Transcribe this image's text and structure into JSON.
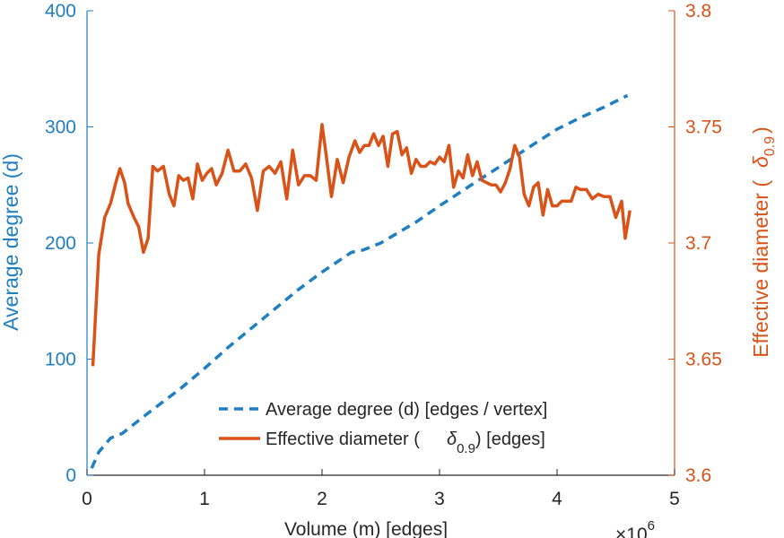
{
  "chart_data": {
    "type": "line",
    "title": "",
    "xlabel": "Volume (m) [edges]",
    "x_multiplier_label": "×10",
    "x_multiplier_exponent": "6",
    "ylabel_left": "Average degree (d)",
    "ylabel_right_prefix": "Effective diameter (",
    "ylabel_right_symbol": "δ",
    "ylabel_right_subscript": "0.9",
    "ylabel_right_suffix": ")",
    "xlim": [
      0,
      5
    ],
    "ylim_left": [
      0,
      400
    ],
    "ylim_right": [
      3.6,
      3.8
    ],
    "x_ticks": [
      "0",
      "1",
      "2",
      "3",
      "4",
      "5"
    ],
    "y_left_ticks": [
      "0",
      "100",
      "200",
      "300",
      "400"
    ],
    "y_right_ticks": [
      "3.6",
      "3.65",
      "3.7",
      "3.75",
      "3.8"
    ],
    "grid": false,
    "legend_position": "lower-right",
    "colors": {
      "left": "#1f7fc0",
      "right": "#d95319",
      "axis_text": "#262626"
    },
    "series": [
      {
        "name": "Average degree (d) [edges / vertex]",
        "axis": "left",
        "style": "dashed",
        "x": [
          0.04,
          0.1,
          0.2,
          0.3,
          0.5,
          0.8,
          1.0,
          1.2,
          1.5,
          1.8,
          2.0,
          2.25,
          2.35,
          2.5,
          2.8,
          3.0,
          3.3,
          3.5,
          3.8,
          4.0,
          4.2,
          4.4,
          4.6
        ],
        "y": [
          6,
          20,
          32,
          36,
          52,
          75,
          92,
          110,
          135,
          160,
          175,
          192,
          194,
          200,
          218,
          232,
          252,
          265,
          285,
          298,
          308,
          317,
          327
        ]
      },
      {
        "name_prefix": "Effective diameter (",
        "name_symbol": "δ",
        "name_subscript": "0.9",
        "name_suffix": ") [edges]",
        "axis": "right",
        "style": "solid",
        "x": [
          0.05,
          0.1,
          0.15,
          0.2,
          0.25,
          0.28,
          0.32,
          0.35,
          0.4,
          0.44,
          0.48,
          0.52,
          0.56,
          0.6,
          0.65,
          0.7,
          0.74,
          0.78,
          0.82,
          0.86,
          0.9,
          0.94,
          0.98,
          1.02,
          1.06,
          1.1,
          1.15,
          1.2,
          1.25,
          1.3,
          1.35,
          1.4,
          1.45,
          1.5,
          1.55,
          1.6,
          1.65,
          1.7,
          1.75,
          1.8,
          1.85,
          1.9,
          1.95,
          2.0,
          2.03,
          2.08,
          2.13,
          2.18,
          2.23,
          2.28,
          2.32,
          2.36,
          2.4,
          2.44,
          2.48,
          2.52,
          2.56,
          2.6,
          2.64,
          2.68,
          2.72,
          2.76,
          2.8,
          2.84,
          2.88,
          2.92,
          2.96,
          3.0,
          3.04,
          3.08,
          3.12,
          3.16,
          3.2,
          3.24,
          3.28,
          3.32,
          3.36,
          3.4,
          3.44,
          3.48,
          3.52,
          3.56,
          3.6,
          3.64,
          3.68,
          3.72,
          3.76,
          3.8,
          3.84,
          3.88,
          3.92,
          3.96,
          4.0,
          4.04,
          4.08,
          4.12,
          4.16,
          4.2,
          4.25,
          4.3,
          4.35,
          4.4,
          4.45,
          4.5,
          4.55,
          4.58,
          4.62
        ],
        "y": [
          3.647,
          3.695,
          3.711,
          3.717,
          3.727,
          3.732,
          3.726,
          3.717,
          3.711,
          3.707,
          3.696,
          3.702,
          3.733,
          3.731,
          3.733,
          3.721,
          3.716,
          3.729,
          3.727,
          3.728,
          3.719,
          3.734,
          3.727,
          3.73,
          3.732,
          3.725,
          3.73,
          3.74,
          3.731,
          3.731,
          3.734,
          3.728,
          3.714,
          3.731,
          3.733,
          3.73,
          3.735,
          3.719,
          3.74,
          3.725,
          3.729,
          3.729,
          3.727,
          3.751,
          3.74,
          3.72,
          3.736,
          3.726,
          3.737,
          3.744,
          3.739,
          3.742,
          3.742,
          3.747,
          3.742,
          3.746,
          3.733,
          3.747,
          3.748,
          3.738,
          3.741,
          3.73,
          3.736,
          3.733,
          3.733,
          3.735,
          3.734,
          3.737,
          3.735,
          3.742,
          3.724,
          3.731,
          3.728,
          3.738,
          3.729,
          3.735,
          3.727,
          3.726,
          3.725,
          3.725,
          3.722,
          3.726,
          3.732,
          3.742,
          3.737,
          3.721,
          3.716,
          3.724,
          3.726,
          3.712,
          3.723,
          3.716,
          3.716,
          3.718,
          3.718,
          3.718,
          3.724,
          3.723,
          3.723,
          3.719,
          3.721,
          3.72,
          3.72,
          3.711,
          3.718,
          3.702,
          3.714
        ]
      }
    ]
  }
}
